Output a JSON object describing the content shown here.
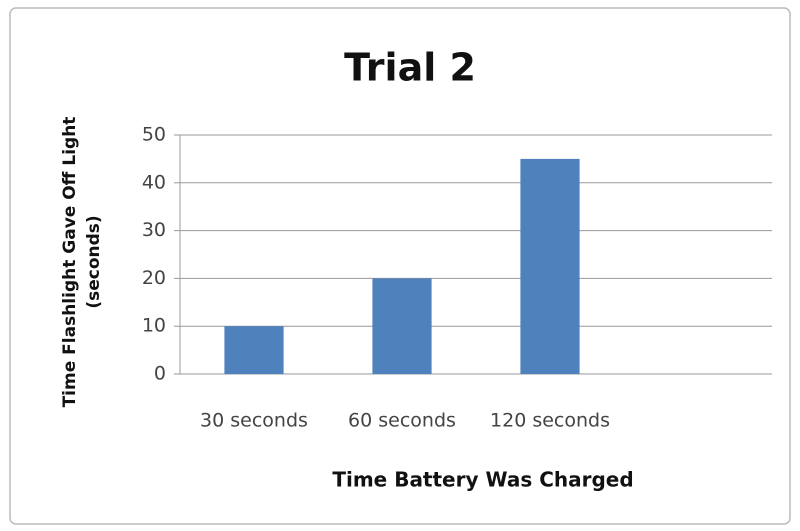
{
  "chart_data": {
    "type": "bar",
    "title": "Trial 2",
    "x_label": "Time Battery Was Charged",
    "y_label": [
      "Time Flashlight Gave Off Light",
      "(seconds)"
    ],
    "categories": [
      "30 seconds",
      "60 seconds",
      "120 seconds",
      null
    ],
    "values": [
      10,
      20,
      45,
      null
    ],
    "color": "#4f81bd",
    "ylim": [
      0,
      50
    ],
    "yticks": [
      0,
      10,
      20,
      30,
      40,
      50
    ],
    "grid": true
  }
}
